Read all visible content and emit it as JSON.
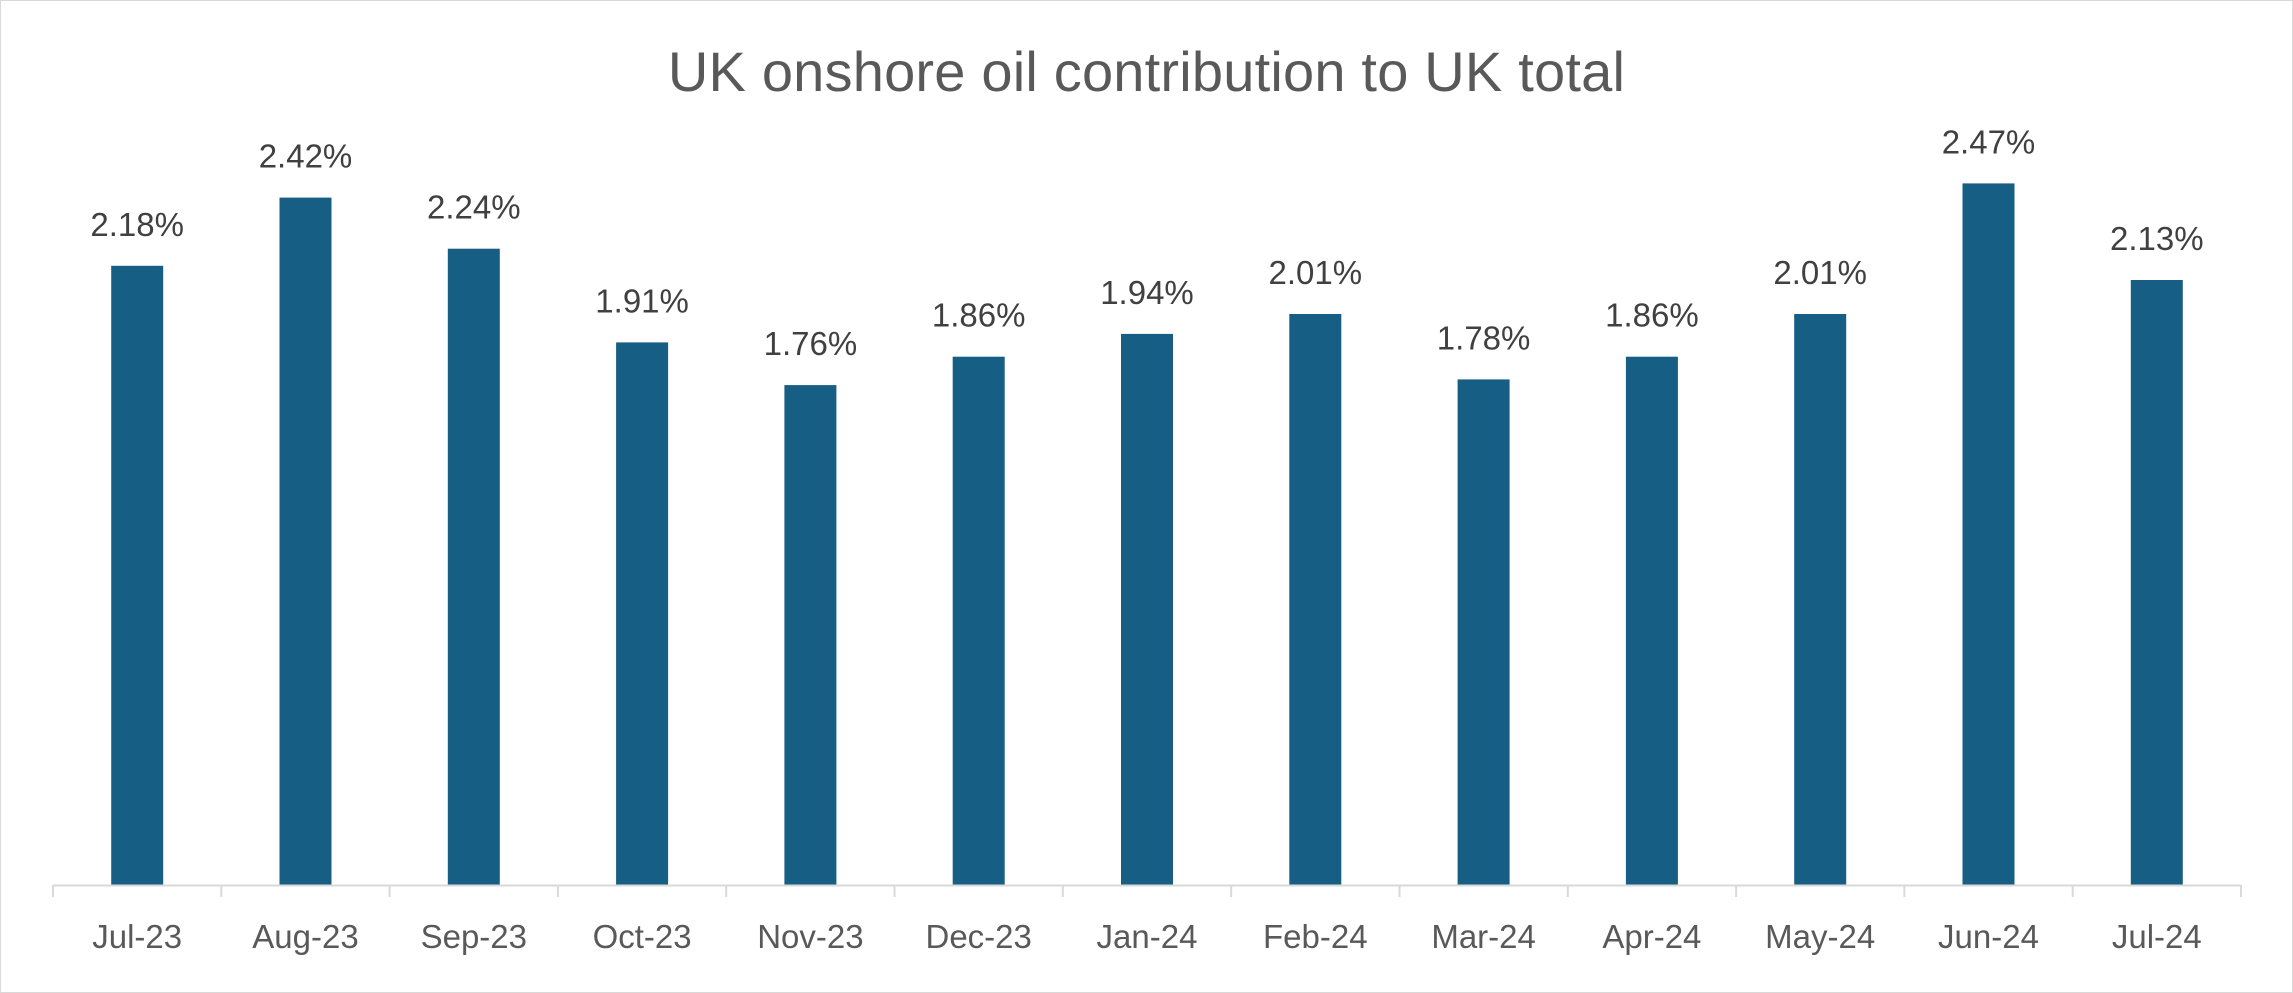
{
  "chart_data": {
    "type": "bar",
    "title": "UK onshore oil contribution to UK total",
    "xlabel": "",
    "ylabel": "",
    "categories": [
      "Jul-23",
      "Aug-23",
      "Sep-23",
      "Oct-23",
      "Nov-23",
      "Dec-23",
      "Jan-24",
      "Feb-24",
      "Mar-24",
      "Apr-24",
      "May-24",
      "Jun-24",
      "Jul-24"
    ],
    "values": [
      2.18,
      2.42,
      2.24,
      1.91,
      1.76,
      1.86,
      1.94,
      2.01,
      1.78,
      1.86,
      2.01,
      2.47,
      2.13
    ],
    "data_labels": [
      "2.18%",
      "2.42%",
      "2.24%",
      "1.91%",
      "1.76%",
      "1.86%",
      "1.94%",
      "2.01%",
      "1.78%",
      "1.86%",
      "2.01%",
      "2.47%",
      "2.13%"
    ],
    "ylim": [
      0,
      2.76
    ],
    "grid": false,
    "legend": "none",
    "colors": {
      "bar": "#165e83",
      "axis": "#d9d9d9",
      "title": "#595959",
      "data_label": "#404040",
      "tick_label": "#595959"
    }
  }
}
